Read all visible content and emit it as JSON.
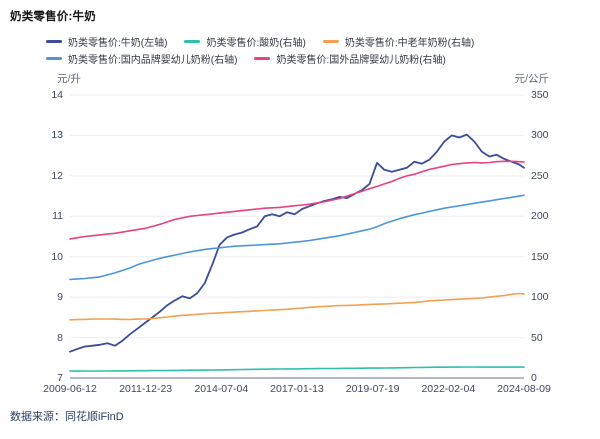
{
  "title": "奶类零售价:牛奶",
  "footer": {
    "source_label": "数据来源：同花顺iFinD"
  },
  "colors": {
    "grid": "#eceef4",
    "axis_line": "#a8aeba",
    "tick_text": "#3e4960",
    "legend_text": "#333a47"
  },
  "chart_data": {
    "type": "line",
    "title": "奶类零售价:牛奶",
    "grid": true,
    "legend_position": "top",
    "legend_rows": [
      [
        0,
        1,
        2
      ],
      [
        3,
        4
      ]
    ],
    "left_axis": {
      "unit": "元/升",
      "min": 7,
      "max": 14,
      "ticks": [
        7,
        8,
        9,
        10,
        11,
        12,
        13,
        14
      ]
    },
    "right_axis": {
      "unit": "元/公斤",
      "min": 0,
      "max": 350,
      "ticks": [
        0,
        50,
        100,
        150,
        200,
        250,
        300,
        350
      ]
    },
    "x_tick_labels": [
      "2009-06-12",
      "2011-12-23",
      "2014-07-04",
      "2017-01-13",
      "2019-07-19",
      "2022-02-04",
      "2024-08-09"
    ],
    "x_ticks_t": [
      0,
      2.527,
      5.053,
      7.58,
      10.107,
      12.633,
      15.16
    ],
    "x_years": [
      0,
      0.25,
      0.5,
      0.75,
      1,
      1.25,
      1.5,
      1.75,
      2,
      2.25,
      2.5,
      2.75,
      3,
      3.25,
      3.5,
      3.75,
      4,
      4.25,
      4.5,
      4.75,
      5,
      5.25,
      5.5,
      5.75,
      6,
      6.25,
      6.5,
      6.75,
      7,
      7.25,
      7.5,
      7.75,
      8,
      8.25,
      8.5,
      8.75,
      9,
      9.25,
      9.5,
      9.75,
      10,
      10.25,
      10.5,
      10.75,
      11,
      11.25,
      11.5,
      11.75,
      12,
      12.25,
      12.5,
      12.75,
      13,
      13.25,
      13.5,
      13.75,
      14,
      14.25,
      14.5,
      14.75,
      15,
      15.16
    ],
    "series": [
      {
        "name": "奶类零售价:牛奶(左轴)",
        "axis": "left",
        "color": "#3b4c9b",
        "values": [
          7.65,
          7.72,
          7.78,
          7.8,
          7.82,
          7.86,
          7.8,
          7.92,
          8.08,
          8.22,
          8.36,
          8.5,
          8.64,
          8.8,
          8.92,
          9.02,
          8.97,
          9.1,
          9.35,
          9.8,
          10.3,
          10.48,
          10.55,
          10.6,
          10.68,
          10.75,
          11.0,
          11.05,
          11.0,
          11.1,
          11.05,
          11.18,
          11.25,
          11.32,
          11.38,
          11.42,
          11.48,
          11.45,
          11.55,
          11.65,
          11.8,
          12.32,
          12.15,
          12.1,
          12.15,
          12.2,
          12.35,
          12.3,
          12.4,
          12.6,
          12.85,
          13.0,
          12.95,
          13.02,
          12.85,
          12.6,
          12.48,
          12.52,
          12.42,
          12.35,
          12.28,
          12.2
        ]
      },
      {
        "name": "奶类零售价:酸奶(右轴)",
        "axis": "right",
        "color": "#2fbfac",
        "values": [
          8.5,
          8.5,
          8.6,
          8.6,
          8.7,
          8.7,
          8.8,
          8.8,
          8.9,
          9.0,
          9.0,
          9.1,
          9.2,
          9.3,
          9.4,
          9.5,
          9.6,
          9.7,
          9.8,
          9.9,
          10.0,
          10.2,
          10.3,
          10.5,
          10.6,
          10.8,
          10.9,
          11.0,
          11.1,
          11.2,
          11.3,
          11.4,
          11.5,
          11.6,
          11.7,
          11.8,
          11.9,
          12.0,
          12.0,
          12.1,
          12.2,
          12.3,
          12.4,
          12.5,
          12.6,
          12.8,
          13.0,
          13.1,
          13.2,
          13.3,
          13.4,
          13.5,
          13.5,
          13.6,
          13.6,
          13.5,
          13.5,
          13.5,
          13.5,
          13.5,
          13.5,
          13.5
        ]
      },
      {
        "name": "奶类零售价:中老年奶粉(右轴)",
        "axis": "right",
        "color": "#f2a152",
        "values": [
          72,
          72.2,
          72.5,
          72.8,
          73,
          73,
          72.8,
          72.5,
          72.5,
          72.8,
          73,
          73.5,
          74.5,
          75.5,
          76.5,
          77.5,
          78,
          78.8,
          79.5,
          80,
          80.5,
          81,
          81.5,
          82,
          82.5,
          83,
          83.5,
          84,
          84.5,
          85,
          85.8,
          86.5,
          87.5,
          88,
          88.5,
          89,
          89.5,
          89.8,
          90,
          90.5,
          91,
          91.3,
          91.5,
          92,
          92.5,
          93,
          93.5,
          94.2,
          95.5,
          96,
          96.5,
          97,
          97.5,
          98,
          98.5,
          99,
          100,
          101,
          102,
          103.5,
          104.5,
          103.8
        ]
      },
      {
        "name": "奶类零售价:国内品牌婴幼儿奶粉(右轴)",
        "axis": "right",
        "color": "#4e95db",
        "values": [
          122,
          122.5,
          123,
          124,
          125,
          127.5,
          130,
          133,
          136,
          140,
          143,
          145.5,
          148,
          150,
          152,
          154,
          156,
          157.5,
          159,
          160,
          161,
          162,
          163,
          163.5,
          164,
          164.5,
          165,
          165.5,
          166,
          167,
          168,
          169,
          170,
          171.5,
          173,
          174.5,
          176,
          178,
          180,
          182,
          184,
          187,
          191,
          194,
          197,
          199.5,
          202,
          204,
          206,
          208,
          210,
          211.5,
          213,
          214.5,
          216,
          217.5,
          219,
          220.5,
          222,
          223.5,
          225,
          226
        ]
      },
      {
        "name": "奶类零售价:国外品牌婴幼儿奶粉(右轴)",
        "axis": "right",
        "color": "#e8417f",
        "values": [
          172,
          173.5,
          175,
          176,
          177,
          178,
          179,
          180.5,
          182,
          183.5,
          185,
          187.5,
          190,
          193,
          196,
          198,
          200,
          201,
          202,
          203,
          204,
          205,
          206,
          207,
          208,
          209,
          210,
          210.5,
          211,
          212,
          213,
          214,
          215,
          216.5,
          218,
          220,
          222,
          225,
          228,
          231,
          234,
          237,
          240,
          243,
          247,
          250,
          252,
          255,
          258,
          260,
          262,
          264,
          265,
          266,
          266.5,
          266,
          266.5,
          267.5,
          268,
          268,
          267.5,
          267
        ]
      }
    ]
  }
}
